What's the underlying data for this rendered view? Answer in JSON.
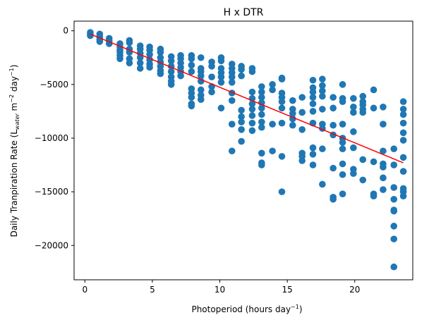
{
  "chart_data": {
    "type": "scatter",
    "title": "H x DTR",
    "xlabel": {
      "main": "Photoperiod (hours day",
      "sup": "−1",
      "tail": ")"
    },
    "ylabel": {
      "p1": "Daily Tranpiration Rate (L",
      "sub": "water",
      "p2": " m",
      "sup1": "−2",
      "p3": " day",
      "sup2": "−1",
      "p4": ")"
    },
    "xlim": [
      -0.8,
      24.3
    ],
    "ylim": [
      -23200,
      900
    ],
    "xticks": [
      0,
      5,
      10,
      15,
      20
    ],
    "xtick_labels": [
      "0",
      "5",
      "10",
      "15",
      "20"
    ],
    "yticks": [
      0,
      -5000,
      -10000,
      -15000,
      -20000
    ],
    "ytick_labels": [
      "0",
      "−5000",
      "−10000",
      "−15000",
      "−20000"
    ],
    "grid": false,
    "colors": {
      "points": "#1f77b4",
      "fit_line": "#ff0000"
    },
    "fit_line": {
      "x": [
        0.4,
        23.6
      ],
      "y": [
        -300,
        -12300
      ]
    },
    "points": [
      [
        0.4,
        -150
      ],
      [
        0.4,
        -300
      ],
      [
        0.4,
        -450
      ],
      [
        1.1,
        -300
      ],
      [
        1.1,
        -550
      ],
      [
        1.1,
        -800
      ],
      [
        1.1,
        -1000
      ],
      [
        1.8,
        -700
      ],
      [
        1.8,
        -950
      ],
      [
        1.8,
        -1200
      ],
      [
        2.6,
        -1200
      ],
      [
        2.6,
        -1500
      ],
      [
        2.6,
        -1800
      ],
      [
        2.6,
        -2000
      ],
      [
        2.6,
        -2300
      ],
      [
        2.6,
        -2600
      ],
      [
        3.3,
        -900
      ],
      [
        3.3,
        -1100
      ],
      [
        3.3,
        -1700
      ],
      [
        3.3,
        -2000
      ],
      [
        3.3,
        -2600
      ],
      [
        3.3,
        -3000
      ],
      [
        4.1,
        -1400
      ],
      [
        4.1,
        -1700
      ],
      [
        4.1,
        -2100
      ],
      [
        4.1,
        -2500
      ],
      [
        4.1,
        -3000
      ],
      [
        4.1,
        -3500
      ],
      [
        4.8,
        -1500
      ],
      [
        4.8,
        -1800
      ],
      [
        4.8,
        -2200
      ],
      [
        4.8,
        -2700
      ],
      [
        4.8,
        -3100
      ],
      [
        4.8,
        -3400
      ],
      [
        5.6,
        -1700
      ],
      [
        5.6,
        -2000
      ],
      [
        5.6,
        -2500
      ],
      [
        5.6,
        -2900
      ],
      [
        5.6,
        -3300
      ],
      [
        5.6,
        -3700
      ],
      [
        5.6,
        -4000
      ],
      [
        6.4,
        -2400
      ],
      [
        6.4,
        -2800
      ],
      [
        6.4,
        -3300
      ],
      [
        6.4,
        -3800
      ],
      [
        6.4,
        -4300
      ],
      [
        6.4,
        -4700
      ],
      [
        6.4,
        -5000
      ],
      [
        7.1,
        -2300
      ],
      [
        7.1,
        -2600
      ],
      [
        7.1,
        -3000
      ],
      [
        7.1,
        -3400
      ],
      [
        7.1,
        -3800
      ],
      [
        7.1,
        -4200
      ],
      [
        7.9,
        -2300
      ],
      [
        7.9,
        -2600
      ],
      [
        7.9,
        -3200
      ],
      [
        7.9,
        -3800
      ],
      [
        7.9,
        -5400
      ],
      [
        7.9,
        -5800
      ],
      [
        7.9,
        -6200
      ],
      [
        7.9,
        -6800
      ],
      [
        7.9,
        -7000
      ],
      [
        8.6,
        -2500
      ],
      [
        8.6,
        -3500
      ],
      [
        8.6,
        -3800
      ],
      [
        8.6,
        -4200
      ],
      [
        8.6,
        -4700
      ],
      [
        8.6,
        -5500
      ],
      [
        8.6,
        -6000
      ],
      [
        8.6,
        -6400
      ],
      [
        9.4,
        -2900
      ],
      [
        9.4,
        -3300
      ],
      [
        9.4,
        -4300
      ],
      [
        9.4,
        -5200
      ],
      [
        9.4,
        -5700
      ],
      [
        10.1,
        -2500
      ],
      [
        10.1,
        -2800
      ],
      [
        10.1,
        -3500
      ],
      [
        10.1,
        -3900
      ],
      [
        10.1,
        -4300
      ],
      [
        10.1,
        -4800
      ],
      [
        10.1,
        -7200
      ],
      [
        10.9,
        -3100
      ],
      [
        10.9,
        -3500
      ],
      [
        10.9,
        -3900
      ],
      [
        10.9,
        -4300
      ],
      [
        10.9,
        -4800
      ],
      [
        10.9,
        -5800
      ],
      [
        10.9,
        -6500
      ],
      [
        10.9,
        -8700
      ],
      [
        10.9,
        -11200
      ],
      [
        11.6,
        -3300
      ],
      [
        11.6,
        -3600
      ],
      [
        11.6,
        -4200
      ],
      [
        11.6,
        -7400
      ],
      [
        11.6,
        -8000
      ],
      [
        11.6,
        -8500
      ],
      [
        11.6,
        -9200
      ],
      [
        11.6,
        -10300
      ],
      [
        12.4,
        -3500
      ],
      [
        12.4,
        -3800
      ],
      [
        12.4,
        -5700
      ],
      [
        12.4,
        -6300
      ],
      [
        12.4,
        -6800
      ],
      [
        12.4,
        -7300
      ],
      [
        12.4,
        -7900
      ],
      [
        12.4,
        -8600
      ],
      [
        12.4,
        -9300
      ],
      [
        13.1,
        -5200
      ],
      [
        13.1,
        -5700
      ],
      [
        13.1,
        -6200
      ],
      [
        13.1,
        -6700
      ],
      [
        13.1,
        -7200
      ],
      [
        13.1,
        -7800
      ],
      [
        13.1,
        -8500
      ],
      [
        13.1,
        -9000
      ],
      [
        13.1,
        -11400
      ],
      [
        13.1,
        -12300
      ],
      [
        13.1,
        -12500
      ],
      [
        13.9,
        -5000
      ],
      [
        13.9,
        -5500
      ],
      [
        13.9,
        -8700
      ],
      [
        13.9,
        -11200
      ],
      [
        14.6,
        -4400
      ],
      [
        14.6,
        -4500
      ],
      [
        14.6,
        -5800
      ],
      [
        14.6,
        -6200
      ],
      [
        14.6,
        -6600
      ],
      [
        14.6,
        -7200
      ],
      [
        14.6,
        -8600
      ],
      [
        14.6,
        -11700
      ],
      [
        14.6,
        -15000
      ],
      [
        15.4,
        -6500
      ],
      [
        15.4,
        -7300
      ],
      [
        15.4,
        -7700
      ],
      [
        15.4,
        -8200
      ],
      [
        15.4,
        -8800
      ],
      [
        16.1,
        -6200
      ],
      [
        16.1,
        -7600
      ],
      [
        16.1,
        -9200
      ],
      [
        16.1,
        -11400
      ],
      [
        16.1,
        -11700
      ],
      [
        16.1,
        -12100
      ],
      [
        16.9,
        -4600
      ],
      [
        16.9,
        -5300
      ],
      [
        16.9,
        -5700
      ],
      [
        16.9,
        -6200
      ],
      [
        16.9,
        -6800
      ],
      [
        16.9,
        -7500
      ],
      [
        16.9,
        -8600
      ],
      [
        16.9,
        -10900
      ],
      [
        16.9,
        -11500
      ],
      [
        16.9,
        -12500
      ],
      [
        17.6,
        -4500
      ],
      [
        17.6,
        -5100
      ],
      [
        17.6,
        -5600
      ],
      [
        17.6,
        -6100
      ],
      [
        17.6,
        -7300
      ],
      [
        17.6,
        -8700
      ],
      [
        17.6,
        -9100
      ],
      [
        17.6,
        -11000
      ],
      [
        17.6,
        -14300
      ],
      [
        18.4,
        -6200
      ],
      [
        18.4,
        -7200
      ],
      [
        18.4,
        -8800
      ],
      [
        18.4,
        -9700
      ],
      [
        18.4,
        -12800
      ],
      [
        18.4,
        -15500
      ],
      [
        18.4,
        -15700
      ],
      [
        19.1,
        -5000
      ],
      [
        19.1,
        -6300
      ],
      [
        19.1,
        -6600
      ],
      [
        19.1,
        -8700
      ],
      [
        19.1,
        -10000
      ],
      [
        19.1,
        -10400
      ],
      [
        19.1,
        -11000
      ],
      [
        19.1,
        -12400
      ],
      [
        19.1,
        -13400
      ],
      [
        19.1,
        -15200
      ],
      [
        19.9,
        -6300
      ],
      [
        19.9,
        -7100
      ],
      [
        19.9,
        -7600
      ],
      [
        19.9,
        -9400
      ],
      [
        19.9,
        -10900
      ],
      [
        19.9,
        -12900
      ],
      [
        19.9,
        -13300
      ],
      [
        20.6,
        -6100
      ],
      [
        20.6,
        -6600
      ],
      [
        20.6,
        -6900
      ],
      [
        20.6,
        -7300
      ],
      [
        20.6,
        -7600
      ],
      [
        20.6,
        -12000
      ],
      [
        20.6,
        -13900
      ],
      [
        21.4,
        -5500
      ],
      [
        21.4,
        -7200
      ],
      [
        21.4,
        -12200
      ],
      [
        21.4,
        -15200
      ],
      [
        21.4,
        -15400
      ],
      [
        22.1,
        -7100
      ],
      [
        22.1,
        -8700
      ],
      [
        22.1,
        -11200
      ],
      [
        22.1,
        -12400
      ],
      [
        22.1,
        -12700
      ],
      [
        22.1,
        -13700
      ],
      [
        22.1,
        -14800
      ],
      [
        22.9,
        -11000
      ],
      [
        22.9,
        -12500
      ],
      [
        22.9,
        -14600
      ],
      [
        22.9,
        -15700
      ],
      [
        22.9,
        -16700
      ],
      [
        22.9,
        -16800
      ],
      [
        22.9,
        -18200
      ],
      [
        22.9,
        -19400
      ],
      [
        22.9,
        -22000
      ],
      [
        23.6,
        -6600
      ],
      [
        23.6,
        -7300
      ],
      [
        23.6,
        -7800
      ],
      [
        23.6,
        -8600
      ],
      [
        23.6,
        -9500
      ],
      [
        23.6,
        -10200
      ],
      [
        23.6,
        -11800
      ],
      [
        23.6,
        -13100
      ],
      [
        23.6,
        -14700
      ],
      [
        23.6,
        -15000
      ],
      [
        23.6,
        -15400
      ]
    ]
  }
}
